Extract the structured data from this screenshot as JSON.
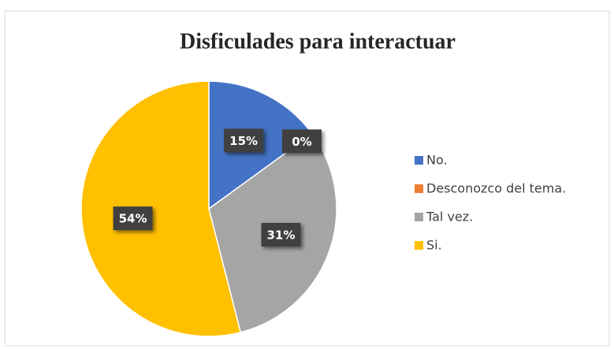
{
  "chart_data": {
    "type": "pie",
    "title": "Disficulades para interactuar",
    "categories": [
      "No.",
      "Desconozco del tema.",
      "Tal vez.",
      "Si."
    ],
    "values": [
      15,
      0,
      31,
      54
    ],
    "value_labels": [
      "15%",
      "0%",
      "31%",
      "54%"
    ],
    "colors": [
      "#4472c4",
      "#ed7d31",
      "#a5a5a5",
      "#ffc000"
    ],
    "legend": "right"
  }
}
